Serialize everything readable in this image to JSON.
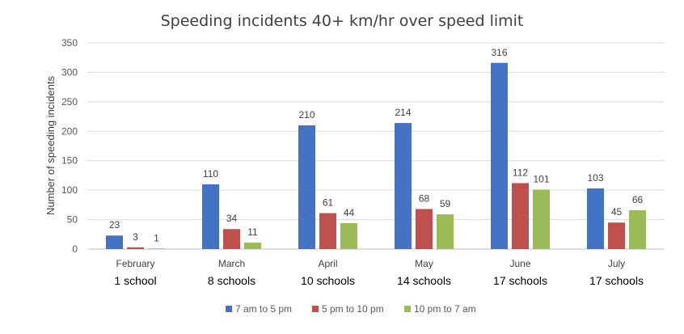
{
  "chart_data": {
    "type": "bar",
    "title": "Speeding incidents 40+ km/hr over speed limit",
    "ylabel": "Number of speeding incidents",
    "xlabel": "",
    "ylim": [
      0,
      350
    ],
    "yticks": [
      0,
      50,
      100,
      150,
      200,
      250,
      300,
      350
    ],
    "grid": true,
    "legend_position": "bottom",
    "categories": [
      "February",
      "March",
      "April",
      "May",
      "June",
      "July"
    ],
    "subcategories": [
      "1 school",
      "8 schools",
      "10 schools",
      "14 schools",
      "17 schools",
      "17 schools"
    ],
    "series": [
      {
        "name": "7 am to 5 pm",
        "color": "#4472C4",
        "values": [
          23,
          110,
          210,
          214,
          316,
          103
        ]
      },
      {
        "name": "5 pm to 10 pm",
        "color": "#C0504D",
        "values": [
          3,
          34,
          61,
          68,
          112,
          45
        ]
      },
      {
        "name": "10 pm to 7 am",
        "color": "#9BBB59",
        "values": [
          1,
          11,
          44,
          59,
          101,
          66
        ]
      }
    ]
  }
}
